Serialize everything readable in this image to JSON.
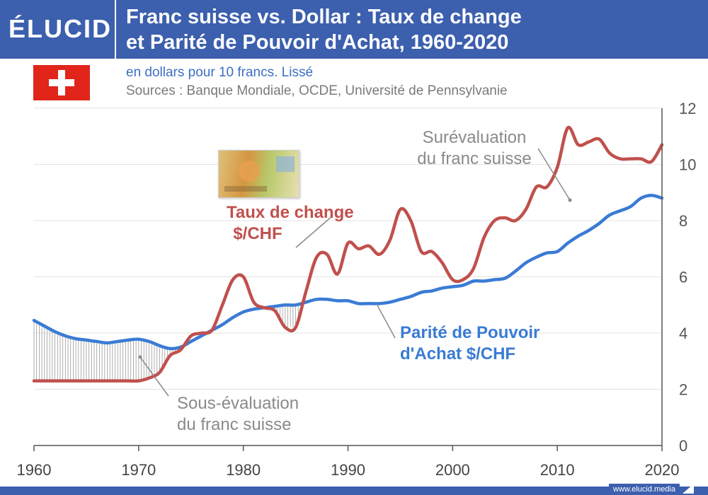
{
  "header": {
    "logo": "ÉLUCID",
    "title_line1": "Franc suisse vs. Dollar : Taux de change",
    "title_line2": "et Parité de Pouvoir d'Achat, 1960-2020",
    "subtitle": "en dollars pour 10 francs. Lissé",
    "sources": "Sources : Banque Mondiale, OCDE, Université de Pennsylvanie"
  },
  "footer": {
    "url": "www.elucid.media"
  },
  "colors": {
    "brand": "#3c5fae",
    "exchange": "#c0504d",
    "ppp": "#3a7bd5",
    "flag": "#e1251b"
  },
  "icons": {
    "flag": "swiss-flag-icon",
    "banknote": "banknote-image"
  },
  "chart_data": {
    "type": "line",
    "x_ticks": [
      1960,
      1970,
      1980,
      1990,
      2000,
      2010,
      2020
    ],
    "y_ticks": [
      0,
      2,
      4,
      6,
      8,
      10,
      12
    ],
    "xlim": [
      1960,
      2020
    ],
    "ylim": [
      0,
      12
    ],
    "grid": true,
    "annotations": {
      "exchange_label_1": "Taux de change",
      "exchange_label_2": "$/CHF",
      "ppp_label_1": "Parité de Pouvoir",
      "ppp_label_2": "d'Achat $/CHF",
      "over_1": "Surévaluation",
      "over_2": "du franc suisse",
      "under_1": "Sous-évaluation",
      "under_2": "du franc suisse"
    },
    "series": [
      {
        "key": "exchange",
        "x": [
          1960,
          1961,
          1962,
          1963,
          1964,
          1965,
          1966,
          1967,
          1968,
          1969,
          1970,
          1971,
          1972,
          1973,
          1974,
          1975,
          1976,
          1977,
          1978,
          1979,
          1980,
          1981,
          1982,
          1983,
          1984,
          1985,
          1986,
          1987,
          1988,
          1989,
          1990,
          1991,
          1992,
          1993,
          1994,
          1995,
          1996,
          1997,
          1998,
          1999,
          2000,
          2001,
          2002,
          2003,
          2004,
          2005,
          2006,
          2007,
          2008,
          2009,
          2010,
          2011,
          2012,
          2013,
          2014,
          2015,
          2016,
          2017,
          2018,
          2019,
          2020
        ],
        "values": [
          2.3,
          2.3,
          2.3,
          2.3,
          2.3,
          2.3,
          2.3,
          2.3,
          2.3,
          2.3,
          2.3,
          2.4,
          2.6,
          3.2,
          3.4,
          3.9,
          4.0,
          4.1,
          5.0,
          5.9,
          6.0,
          5.1,
          4.9,
          4.8,
          4.2,
          4.2,
          5.5,
          6.7,
          6.8,
          6.1,
          7.2,
          7.0,
          7.1,
          6.8,
          7.3,
          8.4,
          8.0,
          6.9,
          6.9,
          6.5,
          5.9,
          5.9,
          6.3,
          7.4,
          8.0,
          8.1,
          8.0,
          8.4,
          9.2,
          9.2,
          9.9,
          11.3,
          10.7,
          10.8,
          10.9,
          10.4,
          10.2,
          10.2,
          10.2,
          10.1,
          10.7
        ]
      },
      {
        "key": "ppp",
        "x": [
          1960,
          1961,
          1962,
          1963,
          1964,
          1965,
          1966,
          1967,
          1968,
          1969,
          1970,
          1971,
          1972,
          1973,
          1974,
          1975,
          1976,
          1977,
          1978,
          1979,
          1980,
          1981,
          1982,
          1983,
          1984,
          1985,
          1986,
          1987,
          1988,
          1989,
          1990,
          1991,
          1992,
          1993,
          1994,
          1995,
          1996,
          1997,
          1998,
          1999,
          2000,
          2001,
          2002,
          2003,
          2004,
          2005,
          2006,
          2007,
          2008,
          2009,
          2010,
          2011,
          2012,
          2013,
          2014,
          2015,
          2016,
          2017,
          2018,
          2019,
          2020
        ],
        "values": [
          4.45,
          4.25,
          4.05,
          3.9,
          3.8,
          3.75,
          3.7,
          3.65,
          3.7,
          3.75,
          3.78,
          3.7,
          3.55,
          3.45,
          3.5,
          3.7,
          3.9,
          4.1,
          4.3,
          4.55,
          4.75,
          4.85,
          4.9,
          4.95,
          5.0,
          5.0,
          5.1,
          5.2,
          5.2,
          5.15,
          5.15,
          5.05,
          5.05,
          5.05,
          5.1,
          5.2,
          5.3,
          5.45,
          5.5,
          5.6,
          5.65,
          5.7,
          5.85,
          5.85,
          5.9,
          5.95,
          6.2,
          6.5,
          6.7,
          6.85,
          6.9,
          7.2,
          7.45,
          7.65,
          7.9,
          8.2,
          8.35,
          8.5,
          8.8,
          8.9,
          8.8
        ]
      }
    ]
  }
}
